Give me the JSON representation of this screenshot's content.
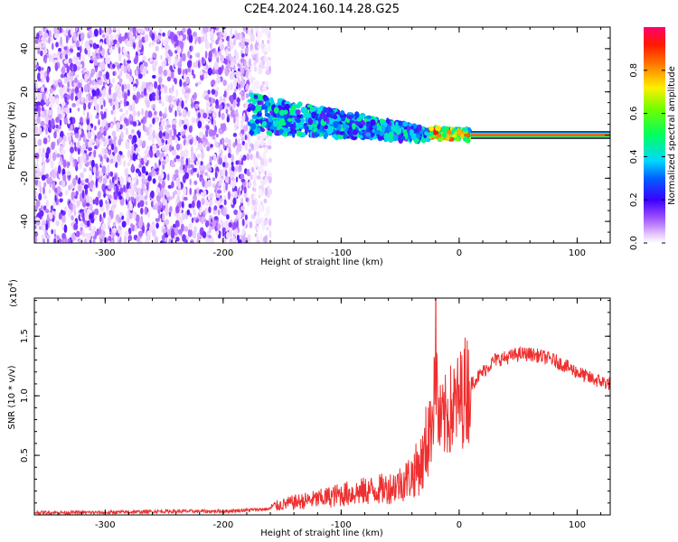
{
  "figure": {
    "title": "C2E4.2024.160.14.28.G25"
  },
  "chart_data": [
    {
      "type": "heatmap",
      "title": "C2E4.2024.160.14.28.G25",
      "xlabel": "Height of straight line (km)",
      "ylabel": "Frequency (Hz)",
      "xlim": [
        -360,
        128
      ],
      "ylim": [
        -50,
        50
      ],
      "x_ticks": [
        -300,
        -200,
        -100,
        0,
        100
      ],
      "x_tick_labels": [
        "-300",
        "-200",
        "-100",
        "0",
        "100"
      ],
      "y_ticks": [
        -40,
        -20,
        0,
        20,
        40
      ],
      "y_tick_labels": [
        "-40",
        "-20",
        "0",
        "20",
        "40"
      ],
      "grid": false,
      "colorbar": {
        "label": "Normalized spectral amplitude",
        "range": [
          0,
          1
        ],
        "ticks": [
          0.0,
          0.2,
          0.4,
          0.6,
          0.8
        ],
        "tick_labels": [
          "0.0",
          "0.2",
          "0.4",
          "0.6",
          "0.8"
        ]
      },
      "regions": [
        {
          "x_range": [
            -360,
            -178
          ],
          "y_range": [
            -50,
            50
          ],
          "amplitude_range": [
            0.02,
            0.18
          ],
          "description_level": "low"
        },
        {
          "x_range": [
            -178,
            -160
          ],
          "y_range": [
            -50,
            50
          ],
          "amplitude_range": [
            0.01,
            0.06
          ],
          "description_level": "very-low"
        },
        {
          "x_range": [
            -178,
            -25
          ],
          "center_freq_start": 10,
          "center_freq_end": 0,
          "amplitude_range": [
            0.15,
            0.5
          ],
          "description_level": "medium"
        },
        {
          "x_range": [
            -25,
            10
          ],
          "center_freq_start": 1,
          "center_freq_end": 0,
          "amplitude_range": [
            0.3,
            0.95
          ],
          "description_level": "high"
        },
        {
          "x_range": [
            10,
            128
          ],
          "center_freq_start": 0,
          "center_freq_end": 0,
          "amplitude_range": [
            0.9,
            1.0
          ],
          "description_level": "line"
        }
      ]
    },
    {
      "type": "line",
      "xlabel": "Height of straight line (km)",
      "ylabel": "SNR (10 * v/v)",
      "scale_label": "(x10",
      "scale_exponent": "4",
      "scale_suffix": ")",
      "xlim": [
        -360,
        128
      ],
      "ylim": [
        0,
        1.82
      ],
      "x_ticks": [
        -300,
        -200,
        -100,
        0,
        100
      ],
      "x_tick_labels": [
        "-300",
        "-200",
        "-100",
        "0",
        "100"
      ],
      "y_ticks": [
        0.5,
        1.0,
        1.5
      ],
      "y_tick_labels": [
        "0.5",
        "1.0",
        "1.5"
      ],
      "grid": false,
      "series": [
        {
          "color": "#ee3030",
          "x": [
            -360,
            -300,
            -250,
            -200,
            -160,
            -140,
            -120,
            -100,
            -80,
            -60,
            -50,
            -40,
            -30,
            -25,
            -22,
            -20,
            -18,
            -15,
            -10,
            -5,
            0,
            5,
            10,
            15,
            20,
            25,
            30,
            40,
            50,
            60,
            70,
            80,
            90,
            100,
            110,
            120,
            128
          ],
          "y": [
            0.02,
            0.02,
            0.03,
            0.03,
            0.05,
            0.08,
            0.1,
            0.13,
            0.15,
            0.17,
            0.2,
            0.25,
            0.35,
            0.6,
            0.95,
            1.5,
            0.8,
            0.75,
            0.85,
            0.9,
            0.95,
            1.05,
            1.1,
            1.15,
            1.2,
            1.25,
            1.3,
            1.32,
            1.35,
            1.35,
            1.33,
            1.3,
            1.25,
            1.2,
            1.15,
            1.12,
            1.1
          ]
        }
      ]
    }
  ]
}
